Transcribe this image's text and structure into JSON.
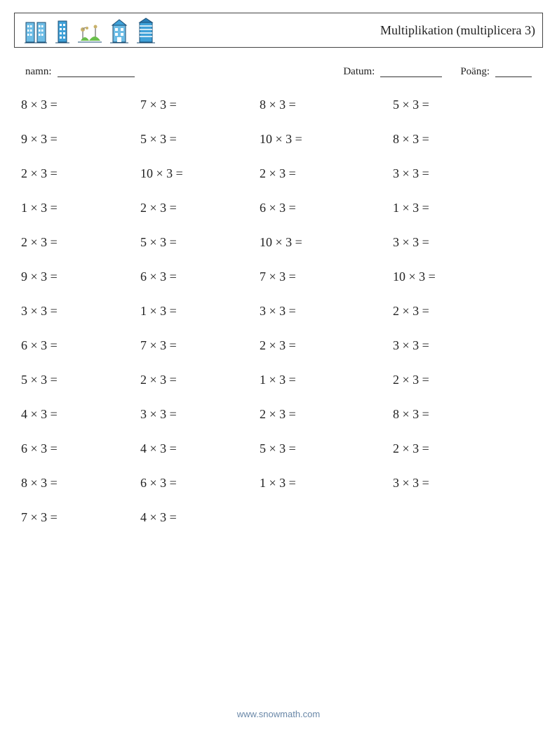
{
  "header": {
    "title": "Multiplikation (multiplicera 3)",
    "icon_colors": {
      "building_light": "#6ebde6",
      "building_mid": "#3fa1d8",
      "building_dark": "#2a7fb8",
      "park_green": "#6abf4b",
      "lamp": "#c9b26a",
      "outline": "#1a4d73"
    }
  },
  "meta": {
    "name_label": "namn:",
    "date_label": "Datum:",
    "score_label": "Poäng:",
    "blank_widths": {
      "name": 110,
      "date": 88,
      "score": 52
    }
  },
  "problems": {
    "type": "worksheet-grid",
    "operator": "×",
    "equals": "=",
    "multiplicand": 3,
    "columns": 4,
    "rows": [
      [
        8,
        7,
        8,
        5
      ],
      [
        9,
        5,
        10,
        8
      ],
      [
        2,
        10,
        2,
        3
      ],
      [
        1,
        2,
        6,
        1
      ],
      [
        2,
        5,
        10,
        3
      ],
      [
        9,
        6,
        7,
        10
      ],
      [
        3,
        1,
        3,
        2
      ],
      [
        6,
        7,
        2,
        3
      ],
      [
        5,
        2,
        1,
        2
      ],
      [
        4,
        3,
        2,
        8
      ],
      [
        6,
        4,
        5,
        2
      ],
      [
        8,
        6,
        1,
        3
      ],
      [
        7,
        4,
        null,
        null
      ]
    ],
    "font_size": 18,
    "row_gap": 28,
    "text_color": "#222222"
  },
  "footer": {
    "text": "www.snowmath.com"
  }
}
